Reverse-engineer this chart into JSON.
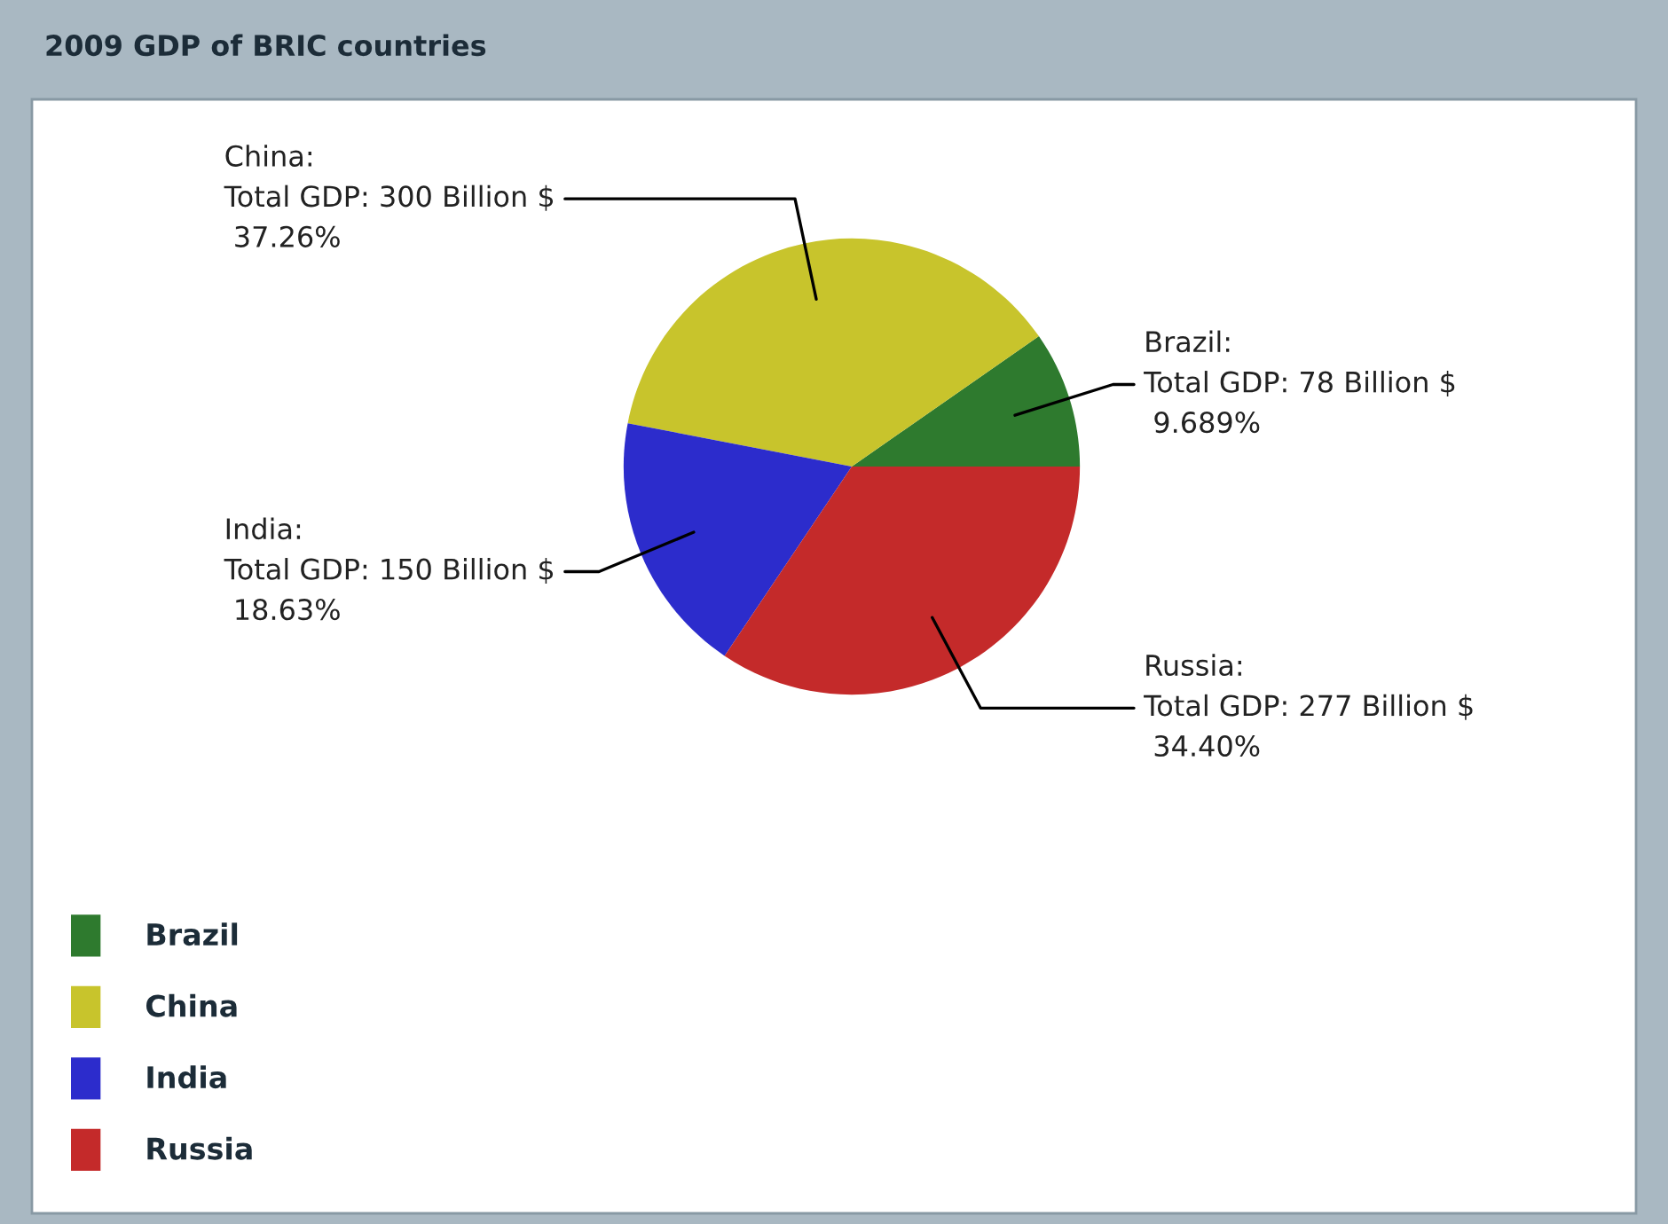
{
  "chart_data": {
    "type": "pie",
    "title": "2009 GDP of BRIC countries",
    "categories": [
      "Brazil",
      "China",
      "India",
      "Russia"
    ],
    "values": [
      78,
      300,
      150,
      277
    ],
    "colors": [
      "#2e7a2e",
      "#c8c42c",
      "#2c2ccc",
      "#c42a2a"
    ],
    "value_labels": [
      "Brazil:\nTotal GDP: 78 Billion $\n 9.689%",
      "China:\nTotal GDP: 300 Billion $\n 37.26%",
      "India:\nTotal GDP: 150 Billion $\n 18.63%",
      "Russia:\nTotal GDP: 277 Billion $\n 34.40%"
    ],
    "legend": "bottom left"
  }
}
